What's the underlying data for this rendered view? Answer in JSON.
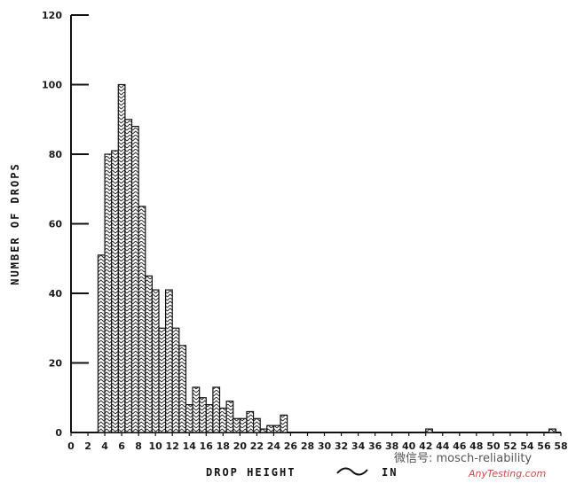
{
  "chart_data": {
    "type": "bar",
    "title": "",
    "xlabel": "DROP HEIGHT",
    "xlabel_unit": "IN",
    "ylabel": "NUMBER OF DROPS",
    "xlim": [
      0,
      58
    ],
    "ylim": [
      0,
      120
    ],
    "xticks": [
      0,
      2,
      4,
      6,
      8,
      10,
      12,
      14,
      16,
      18,
      20,
      22,
      24,
      26,
      28,
      30,
      32,
      34,
      36,
      38,
      40,
      42,
      44,
      46,
      48,
      50,
      52,
      54,
      56,
      58
    ],
    "yticks": [
      0,
      20,
      40,
      60,
      80,
      100,
      120
    ],
    "bin_width": 0.8,
    "bars": [
      {
        "x": 3.2,
        "value": 51
      },
      {
        "x": 4.0,
        "value": 80
      },
      {
        "x": 4.8,
        "value": 81
      },
      {
        "x": 5.6,
        "value": 100
      },
      {
        "x": 6.4,
        "value": 90
      },
      {
        "x": 7.2,
        "value": 88
      },
      {
        "x": 8.0,
        "value": 65
      },
      {
        "x": 8.8,
        "value": 45
      },
      {
        "x": 9.6,
        "value": 41
      },
      {
        "x": 10.4,
        "value": 30
      },
      {
        "x": 11.2,
        "value": 41
      },
      {
        "x": 12.0,
        "value": 30
      },
      {
        "x": 12.8,
        "value": 25
      },
      {
        "x": 13.6,
        "value": 8
      },
      {
        "x": 14.4,
        "value": 13
      },
      {
        "x": 15.2,
        "value": 10
      },
      {
        "x": 16.0,
        "value": 8
      },
      {
        "x": 16.8,
        "value": 13
      },
      {
        "x": 17.6,
        "value": 7
      },
      {
        "x": 18.4,
        "value": 9
      },
      {
        "x": 19.2,
        "value": 4
      },
      {
        "x": 20.0,
        "value": 4
      },
      {
        "x": 20.8,
        "value": 6
      },
      {
        "x": 21.6,
        "value": 4
      },
      {
        "x": 22.4,
        "value": 1
      },
      {
        "x": 23.2,
        "value": 2
      },
      {
        "x": 24.0,
        "value": 2
      },
      {
        "x": 24.8,
        "value": 5
      },
      {
        "x": 42.0,
        "value": 1
      },
      {
        "x": 56.6,
        "value": 1
      }
    ],
    "grid": false,
    "legend": "none"
  },
  "watermark": {
    "text": "微信号: mosch-reliability",
    "subtext": "AnyTesting.com"
  }
}
